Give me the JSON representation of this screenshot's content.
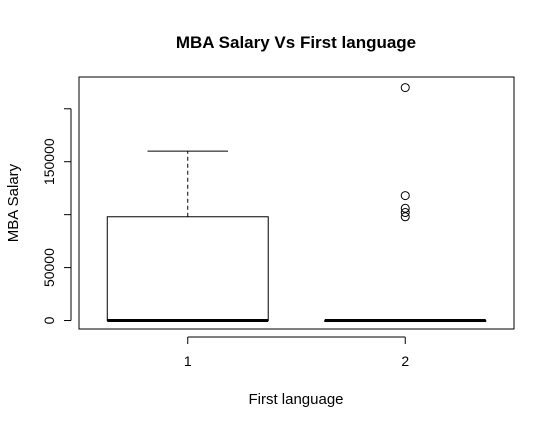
{
  "chart_data": {
    "type": "boxplot",
    "title": "MBA Salary Vs First language",
    "xlabel": "First language",
    "ylabel": "MBA Salary",
    "categories": [
      "1",
      "2"
    ],
    "ylim": [
      -8000,
      230000
    ],
    "yticks": [
      0,
      50000,
      150000
    ],
    "ytick_labels": [
      "0",
      "50000",
      "150000"
    ],
    "boxes": [
      {
        "name": "1",
        "whisker_low": 0,
        "q1": 0,
        "median": 0,
        "q3": 98000,
        "whisker_high": 160000,
        "outliers": []
      },
      {
        "name": "2",
        "whisker_low": 0,
        "q1": 0,
        "median": 0,
        "q3": 0,
        "whisker_high": 0,
        "outliers": [
          220000,
          118000,
          106000,
          102000,
          98000
        ]
      }
    ]
  }
}
